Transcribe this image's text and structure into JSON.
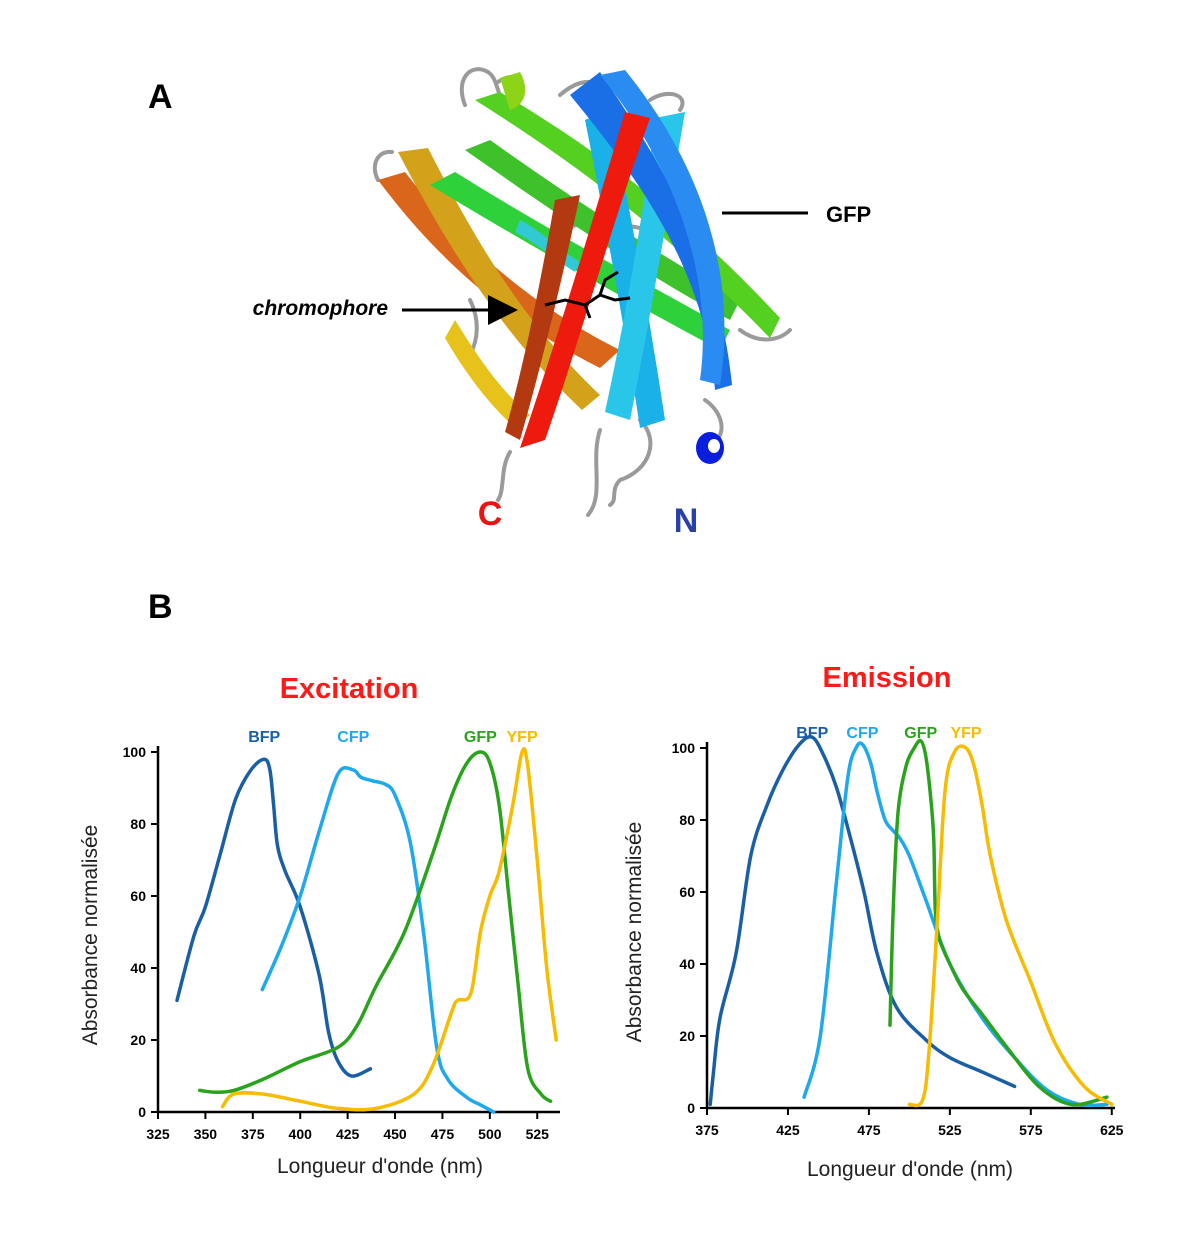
{
  "panel_a": {
    "letter": "A",
    "gfp_label": "GFP",
    "chromophore_label": "chromophore",
    "c_terminus": "C",
    "n_terminus": "N"
  },
  "panel_b": {
    "letter": "B"
  },
  "colors": {
    "bfp": "#1a5fa6",
    "cfp": "#1ea8ee",
    "gfp": "#2aa31c",
    "yfp": "#f7bb00",
    "title_red": "#ff1a1a",
    "c_red": "#ee1111",
    "n_blue": "#2a3fa8"
  },
  "chart_data": [
    {
      "type": "line",
      "title": "Excitation",
      "xlabel": "Longueur d'onde (nm)",
      "ylabel": "Absorbance normalisée",
      "xlim": [
        325,
        537
      ],
      "ylim": [
        0,
        100
      ],
      "xticks": [
        "325",
        "350",
        "375",
        "400",
        "425",
        "450",
        "475",
        "500",
        "525"
      ],
      "yticks": [
        "0",
        "20",
        "40",
        "60",
        "80",
        "100"
      ],
      "series": [
        {
          "name": "BFP",
          "color_key": "bfp",
          "x": [
            335,
            344,
            350,
            358,
            366,
            374,
            381,
            384,
            386,
            388,
            392,
            400,
            410,
            415,
            420,
            427,
            437
          ],
          "y": [
            31,
            49,
            57,
            72,
            87,
            95,
            98,
            95,
            85,
            74,
            67,
            57,
            38,
            22,
            14,
            10,
            12
          ]
        },
        {
          "name": "CFP",
          "color_key": "cfp",
          "x": [
            380,
            390,
            400,
            410,
            420,
            428,
            432,
            438,
            445,
            450,
            458,
            465,
            472,
            478,
            488,
            495,
            502
          ],
          "y": [
            34,
            46,
            60,
            78,
            94,
            95,
            93,
            92,
            91,
            88,
            75,
            50,
            18,
            9,
            4,
            2,
            0
          ]
        },
        {
          "name": "GFP",
          "color_key": "gfp",
          "x": [
            347,
            355,
            365,
            380,
            400,
            420,
            430,
            440,
            455,
            470,
            480,
            488,
            495,
            500,
            505,
            510,
            515,
            520,
            527,
            532
          ],
          "y": [
            6,
            5.5,
            6,
            9,
            14,
            18,
            24,
            35,
            50,
            72,
            88,
            97,
            100,
            97,
            85,
            60,
            35,
            12,
            5,
            3
          ]
        },
        {
          "name": "YFP",
          "color_key": "yfp",
          "x": [
            359,
            365,
            380,
            400,
            420,
            440,
            460,
            470,
            480,
            483,
            490,
            495,
            500,
            505,
            512,
            517,
            520,
            525,
            530,
            535
          ],
          "y": [
            1.5,
            5,
            5,
            3,
            1,
            1,
            5,
            13,
            28,
            31,
            33,
            50,
            60,
            67,
            85,
            100,
            96,
            70,
            40,
            20
          ]
        }
      ]
    },
    {
      "type": "line",
      "title": "Emission",
      "xlabel": "Longueur d'onde (nm)",
      "ylabel": "Absorbance normalisée",
      "xlim": [
        375,
        627
      ],
      "ylim": [
        0,
        100
      ],
      "xticks": [
        "375",
        "425",
        "475",
        "525",
        "575",
        "625"
      ],
      "yticks": [
        "0",
        "20",
        "40",
        "60",
        "80",
        "100"
      ],
      "series": [
        {
          "name": "BFP",
          "color_key": "bfp",
          "x": [
            377,
            379,
            383,
            393,
            402,
            412,
            422,
            432,
            440,
            447,
            455,
            463,
            472,
            480,
            492,
            510,
            525,
            545,
            565
          ],
          "y": [
            1,
            10,
            25,
            43,
            70,
            84,
            94,
            101,
            103,
            98,
            89,
            76,
            60,
            43,
            28,
            19,
            14,
            10,
            6
          ]
        },
        {
          "name": "CFP",
          "color_key": "cfp",
          "x": [
            435,
            445,
            455,
            462,
            467,
            471,
            476,
            480,
            485,
            490,
            494,
            500,
            510,
            525,
            545,
            565,
            585,
            605,
            622
          ],
          "y": [
            3,
            20,
            63,
            92,
            100,
            101,
            96,
            88,
            80,
            77,
            75,
            70,
            58,
            40,
            25,
            14,
            5,
            1,
            1
          ]
        },
        {
          "name": "GFP",
          "color_key": "gfp",
          "x": [
            488,
            490,
            493,
            498,
            503,
            507,
            510,
            513,
            515,
            516,
            518,
            520,
            525,
            533,
            545,
            560,
            580,
            600,
            622
          ],
          "y": [
            23,
            55,
            82,
            95,
            100,
            102,
            98,
            87,
            75,
            55,
            48,
            45,
            40,
            33,
            26,
            17,
            6,
            1,
            3
          ]
        },
        {
          "name": "YFP",
          "color_key": "yfp",
          "x": [
            500,
            508,
            512,
            517,
            522,
            528,
            535,
            540,
            545,
            550,
            560,
            575,
            590,
            608,
            625
          ],
          "y": [
            1,
            2,
            15,
            50,
            88,
            99,
            100,
            95,
            84,
            70,
            52,
            35,
            18,
            6,
            1
          ]
        }
      ]
    }
  ]
}
